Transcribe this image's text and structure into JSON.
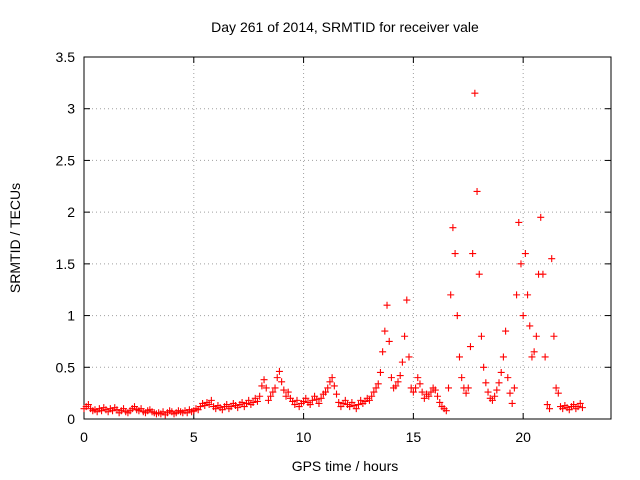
{
  "chart_data": {
    "type": "scatter",
    "title": "Day 261 of 2014, SRMTID for receiver vale",
    "xlabel": "GPS time / hours",
    "ylabel": "SRMTID / TECUs",
    "xlim": [
      0,
      24
    ],
    "ylim": [
      0,
      3.5
    ],
    "x_ticks": [
      0,
      5,
      10,
      15,
      20
    ],
    "x_tick_labels": [
      "0",
      "5",
      "10",
      "15",
      "20"
    ],
    "y_ticks": [
      0,
      0.5,
      1,
      1.5,
      2,
      2.5,
      3,
      3.5
    ],
    "y_tick_labels": [
      "0",
      "0.5",
      "1",
      "1.5",
      "2",
      "2.5",
      "3",
      "3.5"
    ],
    "grid": true,
    "marker": "+",
    "color": "#ff0000",
    "series": [
      {
        "name": "SRMTID",
        "points": [
          [
            0.0,
            0.1
          ],
          [
            0.1,
            0.12
          ],
          [
            0.2,
            0.14
          ],
          [
            0.3,
            0.1
          ],
          [
            0.4,
            0.08
          ],
          [
            0.5,
            0.09
          ],
          [
            0.6,
            0.07
          ],
          [
            0.7,
            0.1
          ],
          [
            0.8,
            0.08
          ],
          [
            0.9,
            0.11
          ],
          [
            1.0,
            0.09
          ],
          [
            1.1,
            0.07
          ],
          [
            1.2,
            0.1
          ],
          [
            1.3,
            0.08
          ],
          [
            1.4,
            0.11
          ],
          [
            1.5,
            0.09
          ],
          [
            1.6,
            0.06
          ],
          [
            1.7,
            0.08
          ],
          [
            1.8,
            0.1
          ],
          [
            1.9,
            0.07
          ],
          [
            2.0,
            0.06
          ],
          [
            2.1,
            0.08
          ],
          [
            2.2,
            0.1
          ],
          [
            2.3,
            0.12
          ],
          [
            2.4,
            0.09
          ],
          [
            2.5,
            0.08
          ],
          [
            2.6,
            0.1
          ],
          [
            2.7,
            0.07
          ],
          [
            2.8,
            0.06
          ],
          [
            2.9,
            0.08
          ],
          [
            3.0,
            0.09
          ],
          [
            3.1,
            0.07
          ],
          [
            3.2,
            0.06
          ],
          [
            3.3,
            0.05
          ],
          [
            3.4,
            0.06
          ],
          [
            3.5,
            0.05
          ],
          [
            3.6,
            0.07
          ],
          [
            3.7,
            0.04
          ],
          [
            3.8,
            0.06
          ],
          [
            3.9,
            0.08
          ],
          [
            4.0,
            0.07
          ],
          [
            4.1,
            0.05
          ],
          [
            4.2,
            0.06
          ],
          [
            4.3,
            0.08
          ],
          [
            4.4,
            0.07
          ],
          [
            4.5,
            0.06
          ],
          [
            4.6,
            0.08
          ],
          [
            4.7,
            0.06
          ],
          [
            4.8,
            0.09
          ],
          [
            4.9,
            0.07
          ],
          [
            5.0,
            0.08
          ],
          [
            5.1,
            0.1
          ],
          [
            5.2,
            0.09
          ],
          [
            5.3,
            0.12
          ],
          [
            5.4,
            0.15
          ],
          [
            5.5,
            0.13
          ],
          [
            5.6,
            0.16
          ],
          [
            5.7,
            0.14
          ],
          [
            5.8,
            0.18
          ],
          [
            5.9,
            0.12
          ],
          [
            6.0,
            0.1
          ],
          [
            6.1,
            0.13
          ],
          [
            6.2,
            0.11
          ],
          [
            6.3,
            0.09
          ],
          [
            6.4,
            0.12
          ],
          [
            6.5,
            0.14
          ],
          [
            6.6,
            0.1
          ],
          [
            6.7,
            0.12
          ],
          [
            6.8,
            0.15
          ],
          [
            6.9,
            0.13
          ],
          [
            7.0,
            0.11
          ],
          [
            7.1,
            0.14
          ],
          [
            7.2,
            0.16
          ],
          [
            7.3,
            0.12
          ],
          [
            7.4,
            0.15
          ],
          [
            7.5,
            0.18
          ],
          [
            7.6,
            0.14
          ],
          [
            7.7,
            0.16
          ],
          [
            7.8,
            0.2
          ],
          [
            7.9,
            0.17
          ],
          [
            8.0,
            0.22
          ],
          [
            8.1,
            0.32
          ],
          [
            8.2,
            0.38
          ],
          [
            8.3,
            0.3
          ],
          [
            8.4,
            0.18
          ],
          [
            8.5,
            0.22
          ],
          [
            8.6,
            0.26
          ],
          [
            8.7,
            0.3
          ],
          [
            8.8,
            0.4
          ],
          [
            8.9,
            0.46
          ],
          [
            9.0,
            0.36
          ],
          [
            9.1,
            0.28
          ],
          [
            9.2,
            0.22
          ],
          [
            9.3,
            0.26
          ],
          [
            9.4,
            0.2
          ],
          [
            9.5,
            0.17
          ],
          [
            9.6,
            0.14
          ],
          [
            9.7,
            0.18
          ],
          [
            9.8,
            0.12
          ],
          [
            9.9,
            0.15
          ],
          [
            10.0,
            0.17
          ],
          [
            10.1,
            0.2
          ],
          [
            10.2,
            0.16
          ],
          [
            10.3,
            0.14
          ],
          [
            10.4,
            0.18
          ],
          [
            10.5,
            0.22
          ],
          [
            10.6,
            0.19
          ],
          [
            10.7,
            0.15
          ],
          [
            10.8,
            0.2
          ],
          [
            10.9,
            0.24
          ],
          [
            11.0,
            0.26
          ],
          [
            11.1,
            0.3
          ],
          [
            11.2,
            0.36
          ],
          [
            11.3,
            0.4
          ],
          [
            11.4,
            0.32
          ],
          [
            11.5,
            0.24
          ],
          [
            11.6,
            0.16
          ],
          [
            11.7,
            0.12
          ],
          [
            11.8,
            0.15
          ],
          [
            11.9,
            0.18
          ],
          [
            12.0,
            0.14
          ],
          [
            12.1,
            0.12
          ],
          [
            12.2,
            0.16
          ],
          [
            12.3,
            0.13
          ],
          [
            12.4,
            0.1
          ],
          [
            12.5,
            0.14
          ],
          [
            12.6,
            0.18
          ],
          [
            12.7,
            0.15
          ],
          [
            12.8,
            0.17
          ],
          [
            12.9,
            0.2
          ],
          [
            13.0,
            0.18
          ],
          [
            13.1,
            0.22
          ],
          [
            13.2,
            0.26
          ],
          [
            13.3,
            0.3
          ],
          [
            13.4,
            0.34
          ],
          [
            13.5,
            0.45
          ],
          [
            13.6,
            0.65
          ],
          [
            13.7,
            0.85
          ],
          [
            13.8,
            1.1
          ],
          [
            13.9,
            0.75
          ],
          [
            14.0,
            0.4
          ],
          [
            14.1,
            0.3
          ],
          [
            14.2,
            0.32
          ],
          [
            14.3,
            0.36
          ],
          [
            14.4,
            0.42
          ],
          [
            14.5,
            0.55
          ],
          [
            14.6,
            0.8
          ],
          [
            14.7,
            1.15
          ],
          [
            14.8,
            0.6
          ],
          [
            14.9,
            0.3
          ],
          [
            15.0,
            0.26
          ],
          [
            15.1,
            0.3
          ],
          [
            15.2,
            0.4
          ],
          [
            15.3,
            0.34
          ],
          [
            15.4,
            0.26
          ],
          [
            15.5,
            0.2
          ],
          [
            15.6,
            0.24
          ],
          [
            15.7,
            0.22
          ],
          [
            15.8,
            0.26
          ],
          [
            15.9,
            0.3
          ],
          [
            16.0,
            0.28
          ],
          [
            16.1,
            0.22
          ],
          [
            16.2,
            0.16
          ],
          [
            16.3,
            0.12
          ],
          [
            16.4,
            0.1
          ],
          [
            16.5,
            0.08
          ],
          [
            16.6,
            0.3
          ],
          [
            16.7,
            1.2
          ],
          [
            16.8,
            1.85
          ],
          [
            16.9,
            1.6
          ],
          [
            17.0,
            1.0
          ],
          [
            17.1,
            0.6
          ],
          [
            17.2,
            0.4
          ],
          [
            17.3,
            0.3
          ],
          [
            17.4,
            0.25
          ],
          [
            17.5,
            0.3
          ],
          [
            17.6,
            0.7
          ],
          [
            17.7,
            1.6
          ],
          [
            17.8,
            3.15
          ],
          [
            17.9,
            2.2
          ],
          [
            18.0,
            1.4
          ],
          [
            18.1,
            0.8
          ],
          [
            18.2,
            0.5
          ],
          [
            18.3,
            0.35
          ],
          [
            18.4,
            0.26
          ],
          [
            18.5,
            0.2
          ],
          [
            18.6,
            0.18
          ],
          [
            18.7,
            0.22
          ],
          [
            18.8,
            0.28
          ],
          [
            18.9,
            0.35
          ],
          [
            19.0,
            0.45
          ],
          [
            19.1,
            0.6
          ],
          [
            19.2,
            0.85
          ],
          [
            19.3,
            0.4
          ],
          [
            19.4,
            0.25
          ],
          [
            19.5,
            0.15
          ],
          [
            19.6,
            0.3
          ],
          [
            19.7,
            1.2
          ],
          [
            19.8,
            1.9
          ],
          [
            19.9,
            1.5
          ],
          [
            20.0,
            1.0
          ],
          [
            20.1,
            1.6
          ],
          [
            20.2,
            1.2
          ],
          [
            20.3,
            0.9
          ],
          [
            20.4,
            0.6
          ],
          [
            20.5,
            0.65
          ],
          [
            20.6,
            0.8
          ],
          [
            20.7,
            1.4
          ],
          [
            20.8,
            1.95
          ],
          [
            20.9,
            1.4
          ],
          [
            21.0,
            0.6
          ],
          [
            21.1,
            0.14
          ],
          [
            21.2,
            0.1
          ],
          [
            21.3,
            1.55
          ],
          [
            21.4,
            0.8
          ],
          [
            21.5,
            0.3
          ],
          [
            21.6,
            0.25
          ],
          [
            21.7,
            0.12
          ],
          [
            21.8,
            0.1
          ],
          [
            21.9,
            0.13
          ],
          [
            22.0,
            0.11
          ],
          [
            22.1,
            0.09
          ],
          [
            22.2,
            0.12
          ],
          [
            22.3,
            0.14
          ],
          [
            22.4,
            0.1
          ],
          [
            22.5,
            0.12
          ],
          [
            22.6,
            0.15
          ],
          [
            22.7,
            0.11
          ]
        ]
      }
    ]
  }
}
